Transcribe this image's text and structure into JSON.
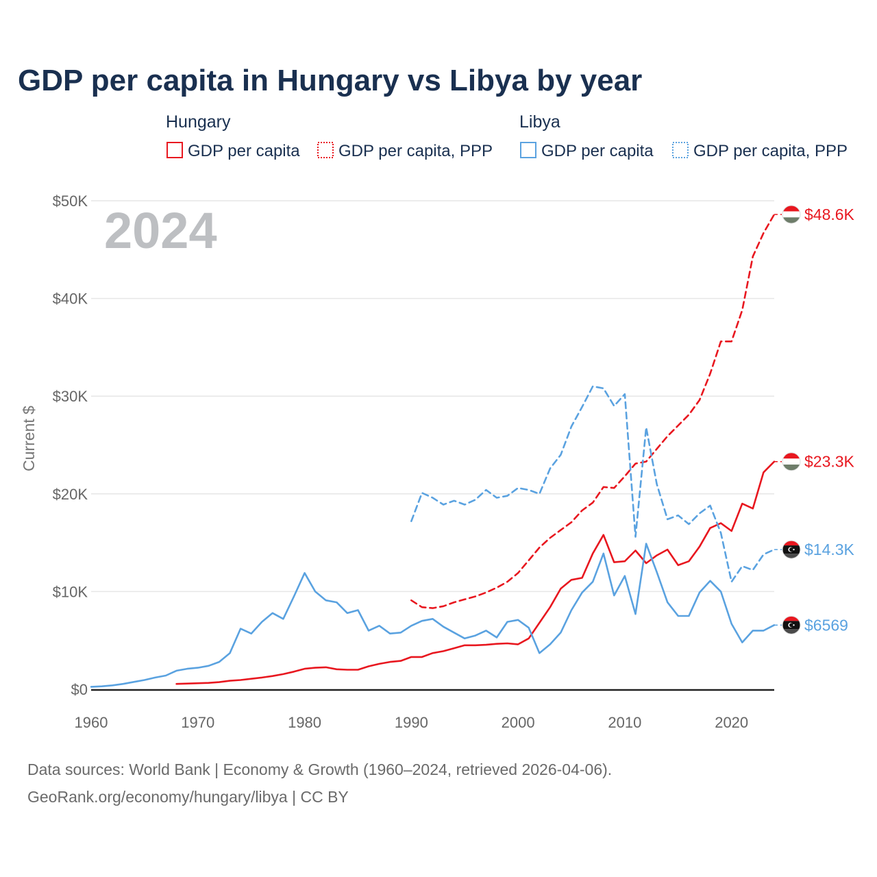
{
  "title": "GDP per capita in Hungary vs Libya by year",
  "current_year": "2024",
  "source_line1": "Data sources: World Bank | Economy & Growth (1960–2024, retrieved 2026-04-06).",
  "source_line2": "GeoRank.org/economy/hungary/libya | CC BY",
  "legend": {
    "hungary": {
      "label": "Hungary",
      "gdp": "GDP per capita",
      "ppp": "GDP per capita, PPP"
    },
    "libya": {
      "label": "Libya",
      "gdp": "GDP per capita",
      "ppp": "GDP per capita, PPP"
    }
  },
  "colors": {
    "hungary": "#e8171f",
    "libya": "#5aa2e0",
    "grid": "#e6e6e6",
    "axis": "#222222"
  },
  "chart_data": {
    "type": "line",
    "title": "GDP per capita in Hungary vs Libya by year",
    "xlabel": "",
    "ylabel": "Current $",
    "xlim": [
      1960,
      2024
    ],
    "ylim": [
      0,
      50000
    ],
    "x_ticks": [
      1960,
      1970,
      1980,
      1990,
      2000,
      2010,
      2020
    ],
    "x_tick_labels": [
      "1960",
      "1970",
      "1980",
      "1990",
      "2000",
      "2010",
      "2020"
    ],
    "y_ticks": [
      0,
      10000,
      20000,
      30000,
      40000,
      50000
    ],
    "y_tick_labels": [
      "$0",
      "$10K",
      "$20K",
      "$30K",
      "$40K",
      "$50K"
    ],
    "series": [
      {
        "name": "Hungary GDP per capita",
        "country": "hungary",
        "style": "solid",
        "end_label": "$23.3K",
        "x": [
          1968,
          1969,
          1970,
          1971,
          1972,
          1973,
          1974,
          1975,
          1976,
          1977,
          1978,
          1979,
          1980,
          1981,
          1982,
          1983,
          1984,
          1985,
          1986,
          1987,
          1988,
          1989,
          1990,
          1991,
          1992,
          1993,
          1994,
          1995,
          1996,
          1997,
          1998,
          1999,
          2000,
          2001,
          2002,
          2003,
          2004,
          2005,
          2006,
          2007,
          2008,
          2009,
          2010,
          2011,
          2012,
          2013,
          2014,
          2015,
          2016,
          2017,
          2018,
          2019,
          2020,
          2021,
          2022,
          2023,
          2024
        ],
        "y": [
          550,
          580,
          620,
          650,
          730,
          870,
          950,
          1070,
          1200,
          1350,
          1550,
          1800,
          2100,
          2200,
          2250,
          2050,
          2000,
          2000,
          2350,
          2600,
          2800,
          2900,
          3300,
          3300,
          3700,
          3900,
          4200,
          4500,
          4500,
          4550,
          4650,
          4700,
          4600,
          5200,
          6800,
          8400,
          10300,
          11200,
          11400,
          13900,
          15800,
          13000,
          13100,
          14200,
          12900,
          13700,
          14300,
          12700,
          13100,
          14600,
          16500,
          17000,
          16200,
          19000,
          18500,
          22200,
          23300
        ]
      },
      {
        "name": "Hungary GDP per capita, PPP",
        "country": "hungary",
        "style": "dashed",
        "end_label": "$48.6K",
        "x": [
          1990,
          1991,
          1992,
          1993,
          1994,
          1995,
          1996,
          1997,
          1998,
          1999,
          2000,
          2001,
          2002,
          2003,
          2004,
          2005,
          2006,
          2007,
          2008,
          2009,
          2010,
          2011,
          2012,
          2013,
          2014,
          2015,
          2016,
          2017,
          2018,
          2019,
          2020,
          2021,
          2022,
          2023,
          2024
        ],
        "y": [
          9100,
          8400,
          8300,
          8500,
          8900,
          9200,
          9500,
          9900,
          10400,
          11000,
          11900,
          13200,
          14500,
          15500,
          16300,
          17100,
          18300,
          19100,
          20700,
          20600,
          21800,
          23100,
          23300,
          24600,
          25900,
          27000,
          28100,
          29600,
          32300,
          35600,
          35600,
          38800,
          44300,
          46700,
          48600
        ]
      },
      {
        "name": "Libya GDP per capita",
        "country": "libya",
        "style": "solid",
        "end_label": "$6569",
        "x": [
          1960,
          1961,
          1962,
          1963,
          1964,
          1965,
          1966,
          1967,
          1968,
          1969,
          1970,
          1971,
          1972,
          1973,
          1974,
          1975,
          1976,
          1977,
          1978,
          1979,
          1980,
          1981,
          1982,
          1983,
          1984,
          1985,
          1986,
          1987,
          1988,
          1989,
          1990,
          1991,
          1992,
          1993,
          1994,
          1995,
          1996,
          1997,
          1998,
          1999,
          2000,
          2001,
          2002,
          2003,
          2004,
          2005,
          2006,
          2007,
          2008,
          2009,
          2010,
          2011,
          2012,
          2013,
          2014,
          2015,
          2016,
          2017,
          2018,
          2019,
          2020,
          2021,
          2022,
          2023,
          2024
        ],
        "y": [
          250,
          300,
          400,
          550,
          750,
          950,
          1200,
          1400,
          1900,
          2100,
          2200,
          2400,
          2800,
          3700,
          6200,
          5700,
          6900,
          7800,
          7200,
          9500,
          11900,
          10000,
          9100,
          8900,
          7800,
          8100,
          6000,
          6500,
          5700,
          5800,
          6500,
          7000,
          7200,
          6400,
          5800,
          5200,
          5500,
          6000,
          5300,
          6900,
          7100,
          6300,
          3700,
          4600,
          5800,
          8100,
          9900,
          11000,
          13900,
          9600,
          11600,
          7700,
          14900,
          12000,
          8900,
          7500,
          7500,
          9900,
          11100,
          10000,
          6700,
          4800,
          6000,
          6000,
          6569
        ]
      },
      {
        "name": "Libya GDP per capita, PPP",
        "country": "libya",
        "style": "dotted",
        "end_label": "$14.3K",
        "x": [
          1990,
          1991,
          1992,
          1993,
          1994,
          1995,
          1996,
          1997,
          1998,
          1999,
          2000,
          2001,
          2002,
          2003,
          2004,
          2005,
          2006,
          2007,
          2008,
          2009,
          2010,
          2011,
          2012,
          2013,
          2014,
          2015,
          2016,
          2017,
          2018,
          2019,
          2020,
          2021,
          2022,
          2023,
          2024
        ],
        "y": [
          17200,
          20100,
          19600,
          18900,
          19300,
          18900,
          19400,
          20400,
          19600,
          19800,
          20600,
          20400,
          20000,
          22600,
          24000,
          26900,
          28900,
          31000,
          30800,
          29000,
          30200,
          15600,
          26800,
          21000,
          17400,
          17800,
          16900,
          18000,
          18800,
          16000,
          11000,
          12600,
          12200,
          13800,
          14300
        ]
      }
    ]
  }
}
